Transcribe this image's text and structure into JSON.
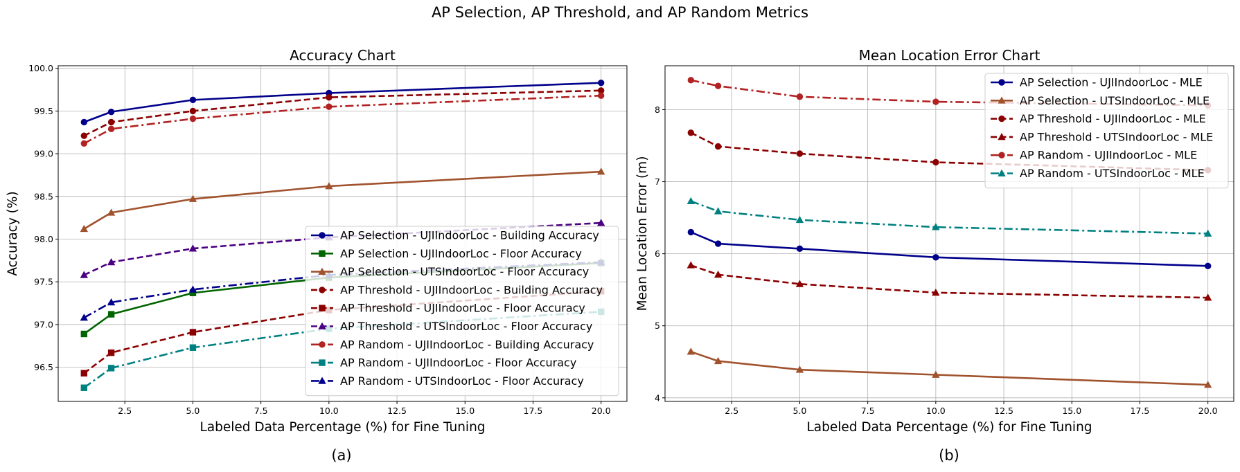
{
  "figure": {
    "suptitle": "AP Selection, AP Threshold, and AP Random Metrics",
    "panel_labels": [
      "(a)",
      "(b)"
    ]
  },
  "chart_data": [
    {
      "type": "line",
      "title": "Accuracy Chart",
      "xlabel": "Labeled Data Percentage (%) for Fine Tuning",
      "ylabel": "Accuracy (%)",
      "xlim": [
        0.05,
        20.95
      ],
      "ylim": [
        96.1,
        100.03
      ],
      "xticks": [
        2.5,
        5.0,
        7.5,
        10.0,
        12.5,
        15.0,
        17.5,
        20.0
      ],
      "xtick_labels": [
        "2.5",
        "5.0",
        "7.5",
        "10.0",
        "12.5",
        "15.0",
        "17.5",
        "20.0"
      ],
      "yticks": [
        96.5,
        97.0,
        97.5,
        98.0,
        98.5,
        99.0,
        99.5,
        100.0
      ],
      "ytick_labels": [
        "96.5",
        "97.0",
        "97.5",
        "98.0",
        "98.5",
        "99.0",
        "99.5",
        "100.0"
      ],
      "grid": true,
      "legend_position": "lower-right",
      "x": [
        1,
        2,
        5,
        10,
        20
      ],
      "series": [
        {
          "name": "AP Selection - UJIIndoorLoc - Building Accuracy",
          "values": [
            99.37,
            99.49,
            99.63,
            99.71,
            99.83
          ],
          "color": "#00008b",
          "dash": "solid",
          "marker": "circle"
        },
        {
          "name": "AP Selection - UJIIndoorLoc - Floor Accuracy",
          "values": [
            96.89,
            97.12,
            97.37,
            97.55,
            97.72
          ],
          "color": "#006400",
          "dash": "solid",
          "marker": "square"
        },
        {
          "name": "AP Selection - UTSIndoorLoc - Floor Accuracy",
          "values": [
            98.12,
            98.31,
            98.47,
            98.62,
            98.79
          ],
          "color": "#a0522d",
          "dash": "solid",
          "marker": "triangle"
        },
        {
          "name": "AP Threshold - UJIIndoorLoc - Building Accuracy",
          "values": [
            99.21,
            99.37,
            99.5,
            99.66,
            99.74
          ],
          "color": "#8b0000",
          "dash": "dashed",
          "marker": "circle"
        },
        {
          "name": "AP Threshold - UJIIndoorLoc - Floor Accuracy",
          "values": [
            96.43,
            96.67,
            96.91,
            97.17,
            97.39
          ],
          "color": "#8b0000",
          "dash": "dashed",
          "marker": "square"
        },
        {
          "name": "AP Threshold - UTSIndoorLoc - Floor Accuracy",
          "values": [
            97.58,
            97.73,
            97.89,
            98.02,
            98.19
          ],
          "color": "#4b0082",
          "dash": "dashed",
          "marker": "triangle"
        },
        {
          "name": "AP Random - UJIIndoorLoc - Building Accuracy",
          "values": [
            99.12,
            99.29,
            99.41,
            99.55,
            99.68
          ],
          "color": "#b22222",
          "dash": "dashdot",
          "marker": "circle"
        },
        {
          "name": "AP Random - UJIIndoorLoc - Floor Accuracy",
          "values": [
            96.26,
            96.49,
            96.73,
            96.95,
            97.15
          ],
          "color": "#008080",
          "dash": "dashdot",
          "marker": "square"
        },
        {
          "name": "AP Random - UTSIndoorLoc - Floor Accuracy",
          "values": [
            97.08,
            97.26,
            97.41,
            97.58,
            97.73
          ],
          "color": "#00008b",
          "dash": "dashdot",
          "marker": "triangle"
        }
      ]
    },
    {
      "type": "line",
      "title": "Mean Location Error Chart",
      "xlabel": "Labeled Data Percentage (%) for Fine Tuning",
      "ylabel": "Mean Location Error (m)",
      "xlim": [
        0.05,
        20.95
      ],
      "ylim": [
        3.95,
        8.61
      ],
      "xticks": [
        2.5,
        5.0,
        7.5,
        10.0,
        12.5,
        15.0,
        17.5,
        20.0
      ],
      "xtick_labels": [
        "2.5",
        "5.0",
        "7.5",
        "10.0",
        "12.5",
        "15.0",
        "17.5",
        "20.0"
      ],
      "yticks": [
        4,
        5,
        6,
        7,
        8
      ],
      "ytick_labels": [
        "4",
        "5",
        "6",
        "7",
        "8"
      ],
      "grid": true,
      "legend_position": "upper-right",
      "x": [
        1,
        2,
        5,
        10,
        20
      ],
      "series": [
        {
          "name": "AP Selection - UJIIndoorLoc - MLE",
          "values": [
            6.3,
            6.14,
            6.07,
            5.95,
            5.83
          ],
          "color": "#00008b",
          "dash": "solid",
          "marker": "circle"
        },
        {
          "name": "AP Selection - UTSIndoorLoc - MLE",
          "values": [
            4.64,
            4.51,
            4.39,
            4.32,
            4.18
          ],
          "color": "#a0522d",
          "dash": "solid",
          "marker": "triangle"
        },
        {
          "name": "AP Threshold - UJIIndoorLoc - MLE",
          "values": [
            7.68,
            7.49,
            7.39,
            7.27,
            7.16
          ],
          "color": "#8b0000",
          "dash": "dashed",
          "marker": "circle"
        },
        {
          "name": "AP Threshold - UTSIndoorLoc - MLE",
          "values": [
            5.84,
            5.71,
            5.58,
            5.46,
            5.39
          ],
          "color": "#8b0000",
          "dash": "dashed",
          "marker": "triangle"
        },
        {
          "name": "AP Random - UJIIndoorLoc - MLE",
          "values": [
            8.41,
            8.33,
            8.18,
            8.11,
            8.06
          ],
          "color": "#b22222",
          "dash": "dashdot",
          "marker": "circle"
        },
        {
          "name": "AP Random - UTSIndoorLoc - MLE",
          "values": [
            6.73,
            6.59,
            6.47,
            6.37,
            6.28
          ],
          "color": "#008080",
          "dash": "dashdot",
          "marker": "triangle"
        }
      ]
    }
  ]
}
